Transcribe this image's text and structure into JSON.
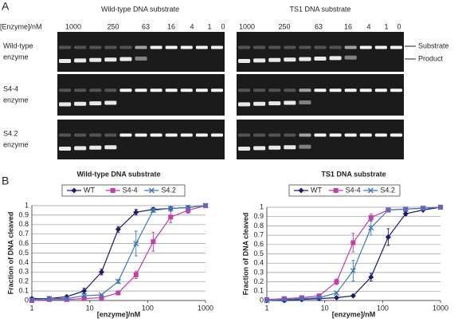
{
  "panel_a": {
    "label": "A",
    "left_title": "Wild-type DNA substrate",
    "right_title": "TS1 DNA substrate",
    "concentration_label": "[Enzyme]/nM",
    "left_lanes": [
      "1000",
      "250",
      "63",
      "16",
      "4",
      "1",
      "0"
    ],
    "right_lanes": [
      "1000",
      "250",
      "63",
      "16",
      "4",
      "1",
      "0"
    ],
    "row_labels": [
      [
        "Wild-type",
        "enzyme"
      ],
      [
        "S4-4",
        "enzyme"
      ],
      [
        "S4.2",
        "enzyme"
      ]
    ],
    "band_labels": [
      "Substrate",
      "Product"
    ]
  },
  "panel_b_label": "B",
  "chart_data": [
    {
      "type": "line",
      "title": "Wild-type DNA substrate",
      "x_label": "[enzyme]/nM",
      "y_label": "Fraction of DNA cleaved",
      "x": [
        1,
        2,
        4,
        8,
        16,
        31,
        63,
        125,
        250,
        500,
        1000
      ],
      "xscale": "log",
      "xlim": [
        1,
        1000
      ],
      "xticks": [
        1,
        10,
        100,
        1000
      ],
      "ylim": [
        0,
        1
      ],
      "yticks": [
        0,
        0.1,
        0.2,
        0.3,
        0.4,
        0.5,
        0.6,
        0.7,
        0.8,
        0.9,
        1
      ],
      "grid": true,
      "series": [
        {
          "name": "WT",
          "color": "#1c1c6b",
          "marker": "diamond",
          "values": [
            0.02,
            0.02,
            0.04,
            0.1,
            0.3,
            0.75,
            0.93,
            0.96,
            0.97,
            0.98,
            1.0
          ],
          "errors": [
            0,
            0,
            0.01,
            0.03,
            0.03,
            0.03,
            0.03,
            0.02,
            0.01,
            0.01,
            0
          ]
        },
        {
          "name": "S4-4",
          "color": "#c23fa8",
          "marker": "square",
          "values": [
            0,
            0.01,
            0.01,
            0.02,
            0.03,
            0.08,
            0.27,
            0.62,
            0.88,
            0.95,
            1.0
          ],
          "errors": [
            0,
            0,
            0,
            0,
            0.01,
            0.02,
            0.04,
            0.1,
            0.06,
            0.03,
            0
          ]
        },
        {
          "name": "S4.2",
          "color": "#3f78b8",
          "marker": "x",
          "values": [
            0.01,
            0.02,
            0.02,
            0.05,
            0.06,
            0.2,
            0.6,
            0.95,
            0.97,
            0.98,
            1.0
          ],
          "errors": [
            0,
            0,
            0,
            0,
            0,
            0.02,
            0.13,
            0.02,
            0.01,
            0.01,
            0
          ]
        }
      ]
    },
    {
      "type": "line",
      "title": "TS1 DNA substrate",
      "x_label": "[enzyme]/nM",
      "y_label": "Fraction of DNA cleaved",
      "x": [
        1,
        2,
        4,
        8,
        16,
        31,
        63,
        125,
        250,
        500,
        1000
      ],
      "xscale": "log",
      "xlim": [
        1,
        1000
      ],
      "xticks": [
        1,
        10,
        100,
        1000
      ],
      "ylim": [
        0,
        1
      ],
      "yticks": [
        0,
        0.1,
        0.2,
        0.3,
        0.4,
        0.5,
        0.6,
        0.7,
        0.8,
        0.9,
        1
      ],
      "grid": true,
      "series": [
        {
          "name": "WT",
          "color": "#1c1c6b",
          "marker": "diamond",
          "values": [
            0,
            0,
            0.01,
            0.02,
            0.03,
            0.05,
            0.25,
            0.68,
            0.93,
            0.97,
            1.0
          ],
          "errors": [
            0,
            0,
            0,
            0,
            0,
            0.01,
            0.04,
            0.09,
            0.02,
            0.01,
            0
          ]
        },
        {
          "name": "S4-4",
          "color": "#c23fa8",
          "marker": "square",
          "values": [
            0.01,
            0.02,
            0.03,
            0.05,
            0.2,
            0.62,
            0.89,
            0.97,
            0.98,
            0.99,
            1.0
          ],
          "errors": [
            0,
            0,
            0,
            0.01,
            0.03,
            0.1,
            0.04,
            0.01,
            0.01,
            0,
            0
          ]
        },
        {
          "name": "S4.2",
          "color": "#3f78b8",
          "marker": "x",
          "values": [
            0,
            0.01,
            0.02,
            0.03,
            0.08,
            0.32,
            0.78,
            0.97,
            0.98,
            0.99,
            1.0
          ],
          "errors": [
            0,
            0,
            0,
            0,
            0.01,
            0.11,
            0.08,
            0.01,
            0.01,
            0,
            0
          ]
        }
      ]
    }
  ]
}
